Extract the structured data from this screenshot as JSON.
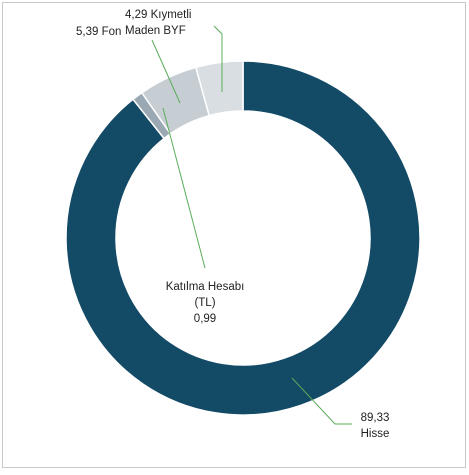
{
  "chart_data": {
    "type": "donut",
    "categories": [
      "Hisse",
      "Katılma Hesabı (TL)",
      "Fon",
      "Kıymetli Maden BYF"
    ],
    "values": [
      89.33,
      0.99,
      5.39,
      4.29
    ],
    "value_labels": [
      "89,33",
      "0,99",
      "5,39",
      "4,29"
    ],
    "colors": [
      "#134a66",
      "#9aa8b4",
      "#c6cdd3",
      "#d9dee2"
    ]
  }
}
